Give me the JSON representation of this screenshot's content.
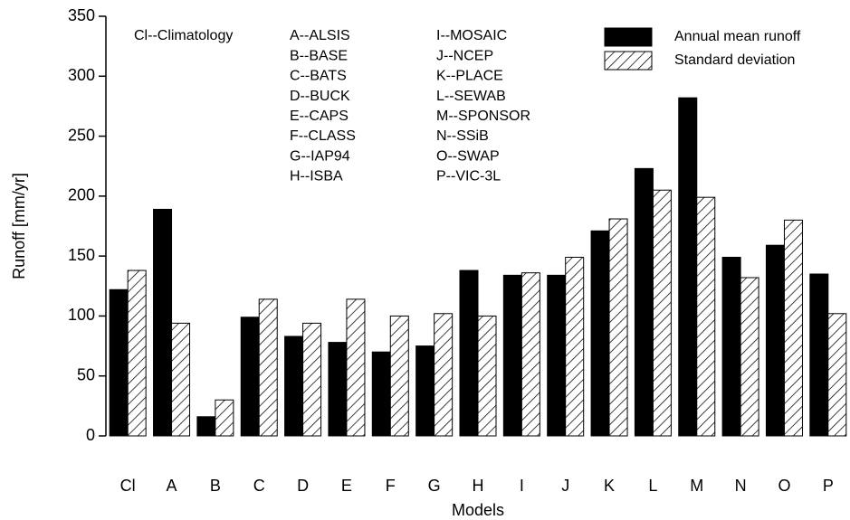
{
  "chart_data": {
    "type": "bar",
    "y_label": "Runoff [mm/yr]",
    "x_label": "Models",
    "categories": [
      "Cl",
      "A",
      "B",
      "C",
      "D",
      "E",
      "F",
      "G",
      "H",
      "I",
      "J",
      "K",
      "L",
      "M",
      "N",
      "O",
      "P"
    ],
    "series": [
      {
        "name": "Annual mean runoff",
        "color": "#000000",
        "pattern": "solid",
        "values": [
          122,
          189,
          16,
          99,
          83,
          78,
          70,
          75,
          138,
          134,
          134,
          171,
          223,
          282,
          149,
          159,
          135
        ]
      },
      {
        "name": "Standard deviation",
        "color": "#000000",
        "pattern": "hatch",
        "values": [
          138,
          94,
          30,
          114,
          94,
          114,
          100,
          102,
          100,
          136,
          149,
          181,
          205,
          199,
          132,
          180,
          102
        ]
      }
    ],
    "annotations": [
      [
        "Cl--Climatology"
      ],
      [
        "A--ALSIS",
        "B--BASE",
        "C--BATS",
        "D--BUCK",
        "E--CAPS",
        "F--CLASS",
        "G--IAP94",
        "H--ISBA"
      ],
      [
        "I--MOSAIC",
        "J--NCEP",
        "K--PLACE",
        "L--SEWAB",
        "M--SPONSOR",
        "N--SSiB",
        "O--SWAP",
        "P--VIC-3L"
      ]
    ],
    "ylim": [
      0,
      350
    ],
    "yticks": [
      0,
      50,
      100,
      150,
      200,
      250,
      300,
      350
    ],
    "grid": false,
    "legend": "upper right"
  }
}
